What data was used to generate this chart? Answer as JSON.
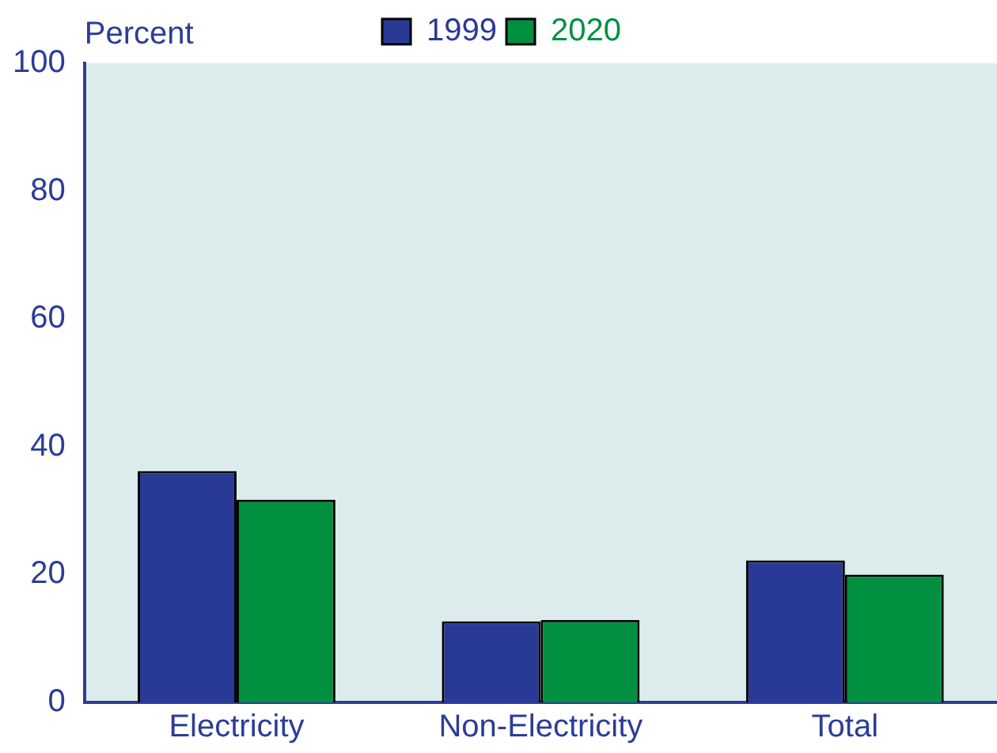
{
  "chart_data": {
    "type": "bar",
    "ylabel": "Percent",
    "categories": [
      "Electricity",
      "Non-Electricity",
      "Total"
    ],
    "series": [
      {
        "name": "1999",
        "color": "#283a96",
        "values": [
          36.2,
          12.7,
          22.2
        ]
      },
      {
        "name": "2020",
        "color": "#009040",
        "values": [
          31.7,
          12.9,
          20.0
        ]
      }
    ],
    "ylim": [
      0,
      100
    ],
    "yticks": [
      0,
      20,
      40,
      60,
      80,
      100
    ],
    "grid": false,
    "legend": "top"
  }
}
